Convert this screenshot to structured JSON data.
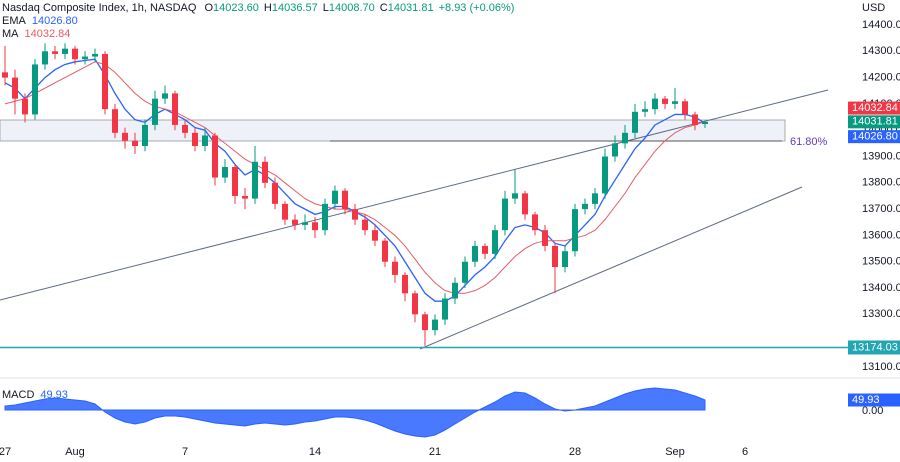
{
  "chart_data": [
    {
      "type": "candlestick",
      "title": "Nasdaq Composite Index, 1h, NASDAQ",
      "currency": "USD",
      "readout": [
        {
          "key": "O",
          "text": "14023.60"
        },
        {
          "key": "H",
          "text": "14036.57"
        },
        {
          "key": "L",
          "text": "14008.70"
        },
        {
          "key": "C",
          "text": "14031.81"
        },
        {
          "text": "+8.93 (+0.06%)"
        }
      ],
      "categories": [
        "27",
        null,
        null,
        null,
        null,
        null,
        null,
        "Aug",
        null,
        null,
        null,
        null,
        null,
        null,
        null,
        null,
        null,
        null,
        "7",
        null,
        null,
        null,
        null,
        null,
        null,
        null,
        null,
        null,
        null,
        null,
        null,
        "14",
        null,
        null,
        null,
        null,
        null,
        null,
        null,
        null,
        null,
        null,
        null,
        "21",
        null,
        null,
        null,
        null,
        null,
        null,
        null,
        null,
        null,
        null,
        null,
        null,
        null,
        "28",
        null,
        null,
        null,
        null,
        null,
        null,
        null,
        null,
        null,
        "Sep",
        null,
        null,
        null,
        null,
        null,
        null,
        "6",
        null
      ],
      "up_color": "#089981",
      "down_color": "#f23645",
      "open": [
        14220,
        14200,
        14120,
        14060,
        14250,
        14300,
        14290,
        14310,
        14270,
        14280,
        14290,
        14080,
        13990,
        13960,
        13940,
        14020,
        14120,
        14140,
        14020,
        13990,
        13940,
        13980,
        13820,
        13860,
        13750,
        13740,
        13880,
        13800,
        13720,
        13660,
        13640,
        13650,
        13620,
        13720,
        13770,
        13700,
        13660,
        13620,
        13580,
        13500,
        13450,
        13380,
        13300,
        13240,
        13280,
        13360,
        13420,
        13500,
        13560,
        13530,
        13620,
        13740,
        13760,
        13680,
        13620,
        13560,
        13480,
        13540,
        13700,
        13720,
        13760,
        13900,
        13950,
        13990,
        14070,
        14080,
        14120,
        14100,
        14110,
        14060,
        14023.6,
        null,
        null,
        null,
        null,
        null
      ],
      "high": [
        14320,
        14230,
        14140,
        14270,
        14330,
        14320,
        14330,
        14320,
        14300,
        14310,
        14300,
        14100,
        14010,
        13990,
        14040,
        14150,
        14170,
        14150,
        14040,
        14010,
        14010,
        13990,
        13890,
        13870,
        13780,
        13940,
        13900,
        13820,
        13730,
        13680,
        13680,
        13670,
        13740,
        13790,
        13780,
        13720,
        13680,
        13640,
        13590,
        13520,
        13460,
        13390,
        13310,
        13300,
        13380,
        13440,
        13520,
        13580,
        13570,
        13640,
        13770,
        13850,
        13770,
        13690,
        13640,
        13570,
        13560,
        13720,
        13740,
        13780,
        13930,
        13980,
        14020,
        14100,
        14110,
        14140,
        14130,
        14160,
        14120,
        14070,
        14036.57,
        null,
        null,
        null,
        null,
        null
      ],
      "low": [
        14170,
        14060,
        14030,
        14040,
        14230,
        14270,
        14270,
        14250,
        14250,
        14260,
        14060,
        13970,
        13930,
        13910,
        13920,
        14000,
        14100,
        14000,
        13970,
        13920,
        13920,
        13790,
        13800,
        13720,
        13700,
        13720,
        13780,
        13700,
        13640,
        13620,
        13620,
        13590,
        13600,
        13700,
        13680,
        13640,
        13600,
        13560,
        13480,
        13420,
        13350,
        13270,
        13180,
        13220,
        13260,
        13340,
        13400,
        13480,
        13510,
        13510,
        13600,
        13720,
        13660,
        13600,
        13540,
        13380,
        13460,
        13520,
        13680,
        13700,
        13740,
        13880,
        13930,
        13970,
        14050,
        14060,
        14080,
        14080,
        14040,
        14000,
        14008.7,
        null,
        null,
        null,
        null,
        null
      ],
      "close": [
        14200,
        14120,
        14060,
        14250,
        14300,
        14290,
        14310,
        14270,
        14280,
        14290,
        14080,
        13990,
        13960,
        13940,
        14020,
        14120,
        14140,
        14020,
        13990,
        13940,
        13980,
        13820,
        13860,
        13750,
        13740,
        13880,
        13800,
        13720,
        13660,
        13640,
        13650,
        13620,
        13720,
        13770,
        13700,
        13660,
        13620,
        13580,
        13500,
        13450,
        13380,
        13300,
        13240,
        13280,
        13360,
        13420,
        13500,
        13560,
        13530,
        13620,
        13740,
        13760,
        13680,
        13620,
        13560,
        13480,
        13540,
        13700,
        13720,
        13760,
        13900,
        13950,
        13990,
        14070,
        14080,
        14120,
        14100,
        14110,
        14060,
        14020,
        14031.81,
        null,
        null,
        null,
        null,
        null
      ],
      "series": [
        {
          "name": "EMA",
          "color": "#2962ff",
          "last_label": "14026.80",
          "values": [
            14180,
            14160,
            14120,
            14160,
            14200,
            14230,
            14250,
            14260,
            14265,
            14270,
            14210,
            14140,
            14080,
            14040,
            14030,
            14060,
            14080,
            14060,
            14040,
            14010,
            14000,
            13950,
            13920,
            13870,
            13830,
            13850,
            13830,
            13800,
            13760,
            13720,
            13700,
            13680,
            13690,
            13710,
            13710,
            13690,
            13670,
            13640,
            13600,
            13560,
            13500,
            13440,
            13380,
            13350,
            13350,
            13370,
            13410,
            13450,
            13480,
            13520,
            13580,
            13630,
            13640,
            13630,
            13610,
            13570,
            13560,
            13600,
            13640,
            13680,
            13750,
            13810,
            13870,
            13930,
            13970,
            14020,
            14040,
            14060,
            14060,
            14050,
            14026.8,
            null,
            null,
            null,
            null,
            null
          ]
        },
        {
          "name": "MA",
          "color": "#e35d6a",
          "last_label": "14032.84",
          "values": [
            14100,
            14110,
            14120,
            14140,
            14160,
            14180,
            14200,
            14220,
            14240,
            14260,
            14250,
            14220,
            14180,
            14140,
            14110,
            14090,
            14080,
            14070,
            14050,
            14030,
            14010,
            13980,
            13950,
            13920,
            13890,
            13870,
            13850,
            13830,
            13800,
            13770,
            13740,
            13720,
            13710,
            13700,
            13700,
            13690,
            13680,
            13660,
            13630,
            13600,
            13560,
            13510,
            13460,
            13420,
            13390,
            13380,
            13380,
            13390,
            13410,
            13440,
            13480,
            13520,
            13550,
            13570,
            13580,
            13580,
            13580,
            13590,
            13600,
            13620,
            13660,
            13710,
            13760,
            13820,
            13870,
            13920,
            13960,
            13990,
            14010,
            14020,
            14032.84,
            null,
            null,
            null,
            null,
            null
          ]
        }
      ],
      "price_tags": [
        {
          "value": 14032.84,
          "label": "14032.84",
          "color": "#f23645"
        },
        {
          "value": 14031.81,
          "label": "14031.81",
          "color": "#089981"
        },
        {
          "value": 14026.8,
          "label": "14026.80",
          "color": "#2962ff"
        }
      ],
      "hlines": [
        {
          "value": 13174.03,
          "label": "13174.03",
          "color": "#22a6b3"
        }
      ],
      "annotations": [
        {
          "text": "61.80%"
        }
      ],
      "ylim": [
        13058,
        14495
      ],
      "yticks": [
        {
          "value": 14400,
          "label": "14400.00"
        },
        {
          "value": 14300,
          "label": "14300.00"
        },
        {
          "value": 14200,
          "label": "14200.00"
        },
        {
          "value": 14100,
          "label": "14100.00"
        },
        {
          "value": 14000,
          "label": "14000.00"
        },
        {
          "value": 13900,
          "label": "13900.00"
        },
        {
          "value": 13800,
          "label": "13800.00"
        },
        {
          "value": 13700,
          "label": "13700.00"
        },
        {
          "value": 13600,
          "label": "13600.00"
        },
        {
          "value": 13500,
          "label": "13500.00"
        },
        {
          "value": 13400,
          "label": "13400.00"
        },
        {
          "value": 13300,
          "label": "13300.00"
        },
        {
          "value": 13100,
          "label": "13100.00"
        }
      ],
      "grid": false
    },
    {
      "type": "area",
      "name": "MACD",
      "color": "#2962ff",
      "last_label": "49.93",
      "values": [
        20,
        25,
        35,
        45,
        55,
        60,
        55,
        50,
        45,
        30,
        -10,
        -40,
        -60,
        -70,
        -60,
        -40,
        -30,
        -30,
        -35,
        -45,
        -55,
        -65,
        -70,
        -75,
        -80,
        -70,
        -65,
        -70,
        -75,
        -70,
        -60,
        -55,
        -45,
        -35,
        -35,
        -40,
        -50,
        -65,
        -85,
        -105,
        -120,
        -130,
        -135,
        -125,
        -100,
        -70,
        -40,
        -10,
        15,
        40,
        70,
        90,
        85,
        60,
        30,
        5,
        -5,
        0,
        10,
        20,
        40,
        60,
        80,
        95,
        105,
        110,
        105,
        100,
        85,
        70,
        49.93,
        null,
        null,
        null,
        null,
        null
      ],
      "ylim": [
        -175,
        160
      ],
      "yticks": [
        {
          "value": 0,
          "label": "0.00"
        }
      ]
    }
  ]
}
